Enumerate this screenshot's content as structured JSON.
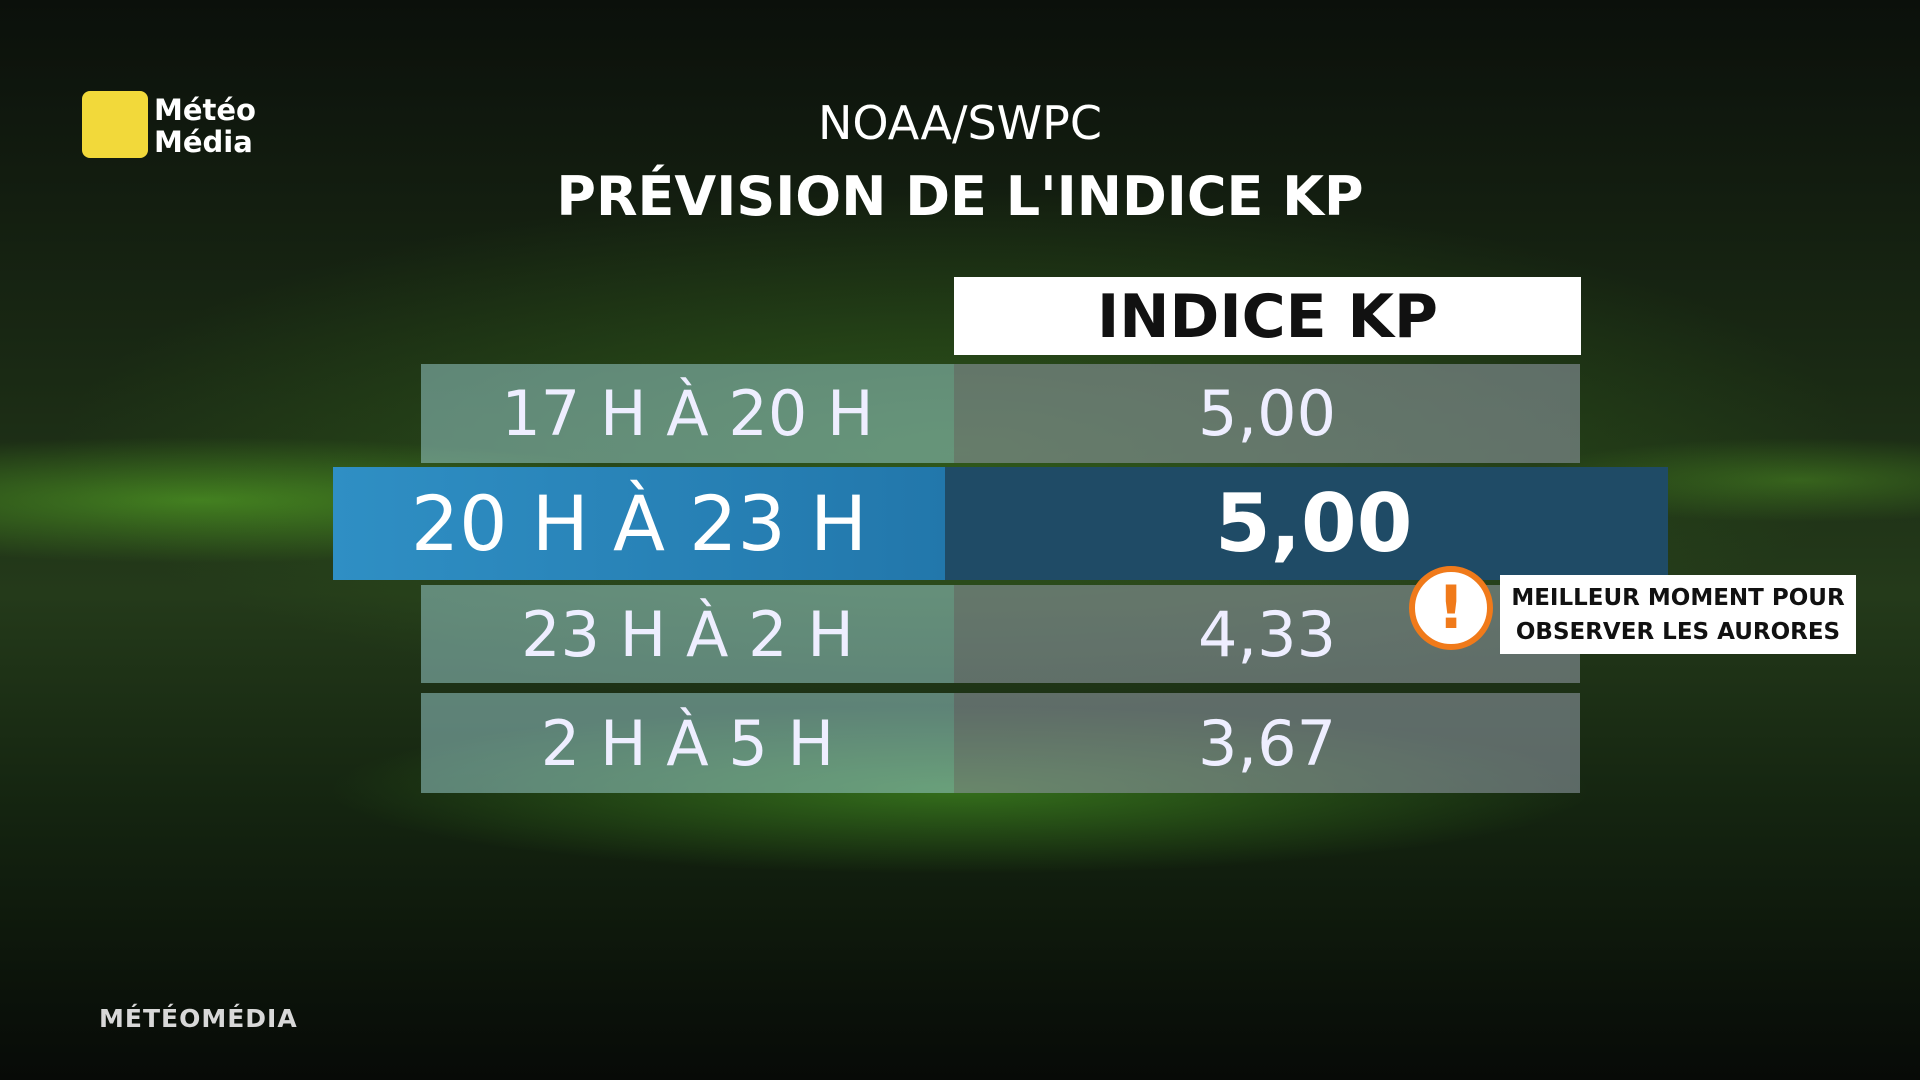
{
  "logo": {
    "lines": [
      "Météo",
      "Média"
    ]
  },
  "header": {
    "source": "NOAA/SWPC",
    "title": "PRÉVISION DE L'INDICE KP"
  },
  "table": {
    "column_header": "INDICE KP",
    "rows": [
      [
        "17 H À 20 H",
        "5,00"
      ],
      [
        "20 H À 23 H",
        "5,00"
      ],
      [
        "23 H À 2 H",
        "4,33"
      ],
      [
        "2 H À 5 H",
        "3,67"
      ]
    ]
  },
  "callout": {
    "lines": [
      "MEILLEUR MOMENT POUR",
      "OBSERVER LES AURORES"
    ]
  },
  "footer": "MÉTÉOMÉDIA"
}
